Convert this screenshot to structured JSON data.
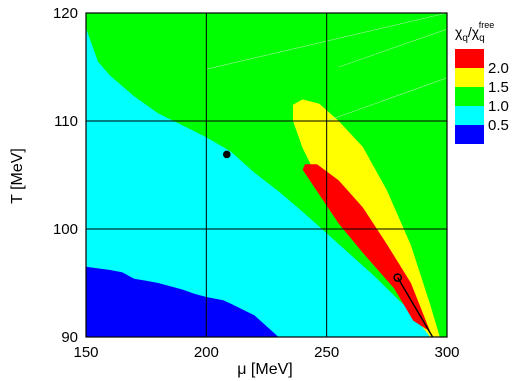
{
  "chart_data": {
    "type": "heatmap",
    "xlabel": "μ [MeV]",
    "ylabel": "T [MeV]",
    "xlim": [
      150,
      300
    ],
    "ylim": [
      90,
      120
    ],
    "x_ticks": [
      150,
      200,
      250,
      300
    ],
    "y_ticks": [
      90,
      100,
      110,
      120
    ],
    "x_tick_labels": [
      "150",
      "200",
      "250",
      "300"
    ],
    "y_tick_labels": [
      "90",
      "100",
      "110",
      "120"
    ],
    "grid": true,
    "legend": {
      "placement": "top-right",
      "title_main": "χ",
      "title_sub1": "q",
      "title_sep": "/χ",
      "title_sub2": "q",
      "title_sup": "free",
      "entries": [
        {
          "label": "2.0",
          "color": "#ff0000"
        },
        {
          "label": "1.5",
          "color": "#ffff00"
        },
        {
          "label": "1.0",
          "color": "#00ff00"
        },
        {
          "label": "0.5",
          "color": "#00ffff"
        },
        {
          "label": "",
          "color": "#0000ff"
        }
      ]
    },
    "regions": [
      {
        "level": "0.5-1.0",
        "color": "#00ffff",
        "polygon": [
          [
            150,
            118.6
          ],
          [
            155,
            115.5
          ],
          [
            160,
            114.2
          ],
          [
            170,
            112.3
          ],
          [
            180,
            110.7
          ],
          [
            190,
            109.6
          ],
          [
            200,
            108.5
          ],
          [
            210,
            107.2
          ],
          [
            220,
            105.2
          ],
          [
            230,
            103.5
          ],
          [
            240,
            101.6
          ],
          [
            250,
            99.6
          ],
          [
            260,
            97.6
          ],
          [
            270,
            95.6
          ],
          [
            280,
            93.4
          ],
          [
            290,
            91.4
          ],
          [
            295,
            90
          ],
          [
            150,
            90
          ]
        ]
      },
      {
        "level": "<0.5",
        "color": "#0000ff",
        "polygon": [
          [
            150,
            96.5
          ],
          [
            160,
            96.2
          ],
          [
            165,
            96.0
          ],
          [
            170,
            95.4
          ],
          [
            175,
            95.2
          ],
          [
            180,
            95.0
          ],
          [
            190,
            94.4
          ],
          [
            195,
            94.0
          ],
          [
            200,
            93.7
          ],
          [
            207,
            93.4
          ],
          [
            210,
            93.1
          ],
          [
            220,
            92.0
          ],
          [
            230,
            90
          ],
          [
            150,
            90
          ]
        ]
      },
      {
        "level": "1.0-1.5",
        "color": "#ffff00",
        "polygon": [
          [
            236,
            111.5
          ],
          [
            240,
            112.0
          ],
          [
            247,
            111.6
          ],
          [
            255,
            110.0
          ],
          [
            265,
            107.6
          ],
          [
            275,
            103.6
          ],
          [
            285,
            98.5
          ],
          [
            293,
            93
          ],
          [
            297,
            90
          ],
          [
            293,
            90
          ],
          [
            286,
            92
          ],
          [
            275,
            96
          ],
          [
            262,
            99.5
          ],
          [
            250,
            103
          ],
          [
            240,
            107.5
          ],
          [
            236,
            110
          ]
        ]
      },
      {
        "level": ">2.0",
        "color": "#ff0000",
        "polygon": [
          [
            241,
            106
          ],
          [
            246,
            106
          ],
          [
            255,
            104.5
          ],
          [
            265,
            102
          ],
          [
            275,
            98.6
          ],
          [
            285,
            95
          ],
          [
            293,
            90.5
          ],
          [
            286,
            91.5
          ],
          [
            278,
            94.5
          ],
          [
            265,
            97.8
          ],
          [
            255,
            100.5
          ],
          [
            246,
            103.5
          ],
          [
            240,
            105.5
          ]
        ]
      }
    ],
    "markers": [
      {
        "type": "filled-point",
        "x": 208.5,
        "y": 106.9
      },
      {
        "type": "open-point",
        "x": 279.5,
        "y": 95.5
      }
    ],
    "lines": [
      {
        "points": [
          [
            279.5,
            95.5
          ],
          [
            294,
            90
          ]
        ]
      }
    ]
  }
}
